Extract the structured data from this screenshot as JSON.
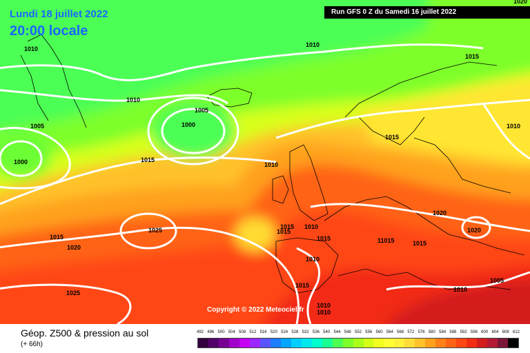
{
  "header": {
    "date": "Lundi 18 juillet 2022",
    "time": "20:00 locale",
    "run": "Run GFS 0 Z du Samedi 16 juillet 2022",
    "edge_label": "1020"
  },
  "copyright": "Copyright © 2022 Meteociel.fr",
  "footer": {
    "title": "Géop. Z500 & pression au sol",
    "subtitle": "(+ 66h)"
  },
  "legend": {
    "ticks": [
      "492",
      "496",
      "500",
      "504",
      "508",
      "512",
      "516",
      "520",
      "524",
      "528",
      "532",
      "536",
      "540",
      "544",
      "548",
      "552",
      "556",
      "560",
      "564",
      "568",
      "572",
      "576",
      "580",
      "584",
      "588",
      "592",
      "596",
      "600",
      "604",
      "608",
      "612"
    ],
    "colors": [
      "#33003d",
      "#52006b",
      "#750091",
      "#a100c8",
      "#c400f5",
      "#9c26ff",
      "#5a54ff",
      "#1c7dff",
      "#00a6ff",
      "#00cfff",
      "#00e8ee",
      "#00ffcc",
      "#19ff94",
      "#4cff55",
      "#7dff2a",
      "#aaff1a",
      "#d4ff19",
      "#f1ff1e",
      "#ffff33",
      "#fff038",
      "#ffdc33",
      "#ffc12a",
      "#ffa11f",
      "#ff8019",
      "#ff6315",
      "#ff4713",
      "#f22c13",
      "#d31c1c",
      "#b31a35",
      "#7a1638",
      "#000000"
    ]
  },
  "colors": {
    "isobar": "#ffffff",
    "title_text": "#1a66ff"
  },
  "isobar_labels": [
    {
      "id": "a",
      "text": "1010"
    },
    {
      "id": "b",
      "text": "1010"
    },
    {
      "id": "c",
      "text": "1015"
    },
    {
      "id": "d",
      "text": "1010"
    },
    {
      "id": "e",
      "text": "1005"
    },
    {
      "id": "f",
      "text": "1005"
    },
    {
      "id": "g",
      "text": "1000"
    },
    {
      "id": "h",
      "text": "1000"
    },
    {
      "id": "i",
      "text": "1015"
    },
    {
      "id": "j",
      "text": "1010"
    },
    {
      "id": "k",
      "text": "1015"
    },
    {
      "id": "l",
      "text": "1010"
    },
    {
      "id": "m",
      "text": "1025"
    },
    {
      "id": "n",
      "text": "1015"
    },
    {
      "id": "o",
      "text": "1020"
    },
    {
      "id": "p",
      "text": "1015"
    },
    {
      "id": "q",
      "text": "1015"
    },
    {
      "id": "r",
      "text": "1010"
    },
    {
      "id": "s",
      "text": "1015"
    },
    {
      "id": "t",
      "text": "1010"
    },
    {
      "id": "u",
      "text": "11015"
    },
    {
      "id": "v",
      "text": "1015"
    },
    {
      "id": "w",
      "text": "1020"
    },
    {
      "id": "x",
      "text": "1020"
    },
    {
      "id": "y",
      "text": "1025"
    },
    {
      "id": "z",
      "text": "1015"
    },
    {
      "id": "aa",
      "text": "1010"
    },
    {
      "id": "ab",
      "text": "1010"
    },
    {
      "id": "ac",
      "text": "1010"
    },
    {
      "id": "ad",
      "text": "1005"
    }
  ]
}
